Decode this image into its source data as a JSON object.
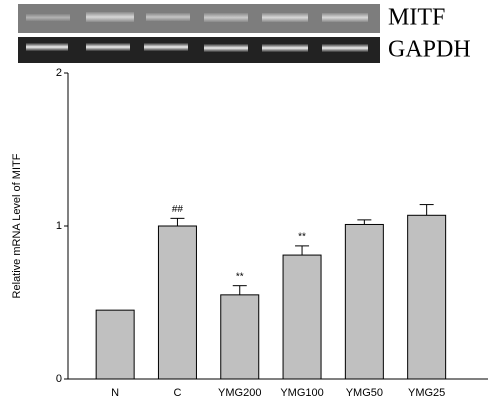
{
  "gel": {
    "labels": [
      "MITF",
      "GAPDH"
    ]
  },
  "chart_data": {
    "type": "bar",
    "ylabel": "Relative mRNA Level of MITF",
    "categories": [
      "N",
      "C",
      "YMG200",
      "YMG100",
      "YMG50",
      "YMG25"
    ],
    "values": [
      0.45,
      1.0,
      0.55,
      0.81,
      1.01,
      1.07
    ],
    "errors": [
      0,
      0.05,
      0.06,
      0.06,
      0.03,
      0.07
    ],
    "significance": [
      null,
      "##",
      "**",
      "**",
      null,
      null
    ],
    "color": "#c0c0c0",
    "ylim": [
      0,
      2
    ],
    "yticks": [
      0,
      1,
      2
    ]
  }
}
